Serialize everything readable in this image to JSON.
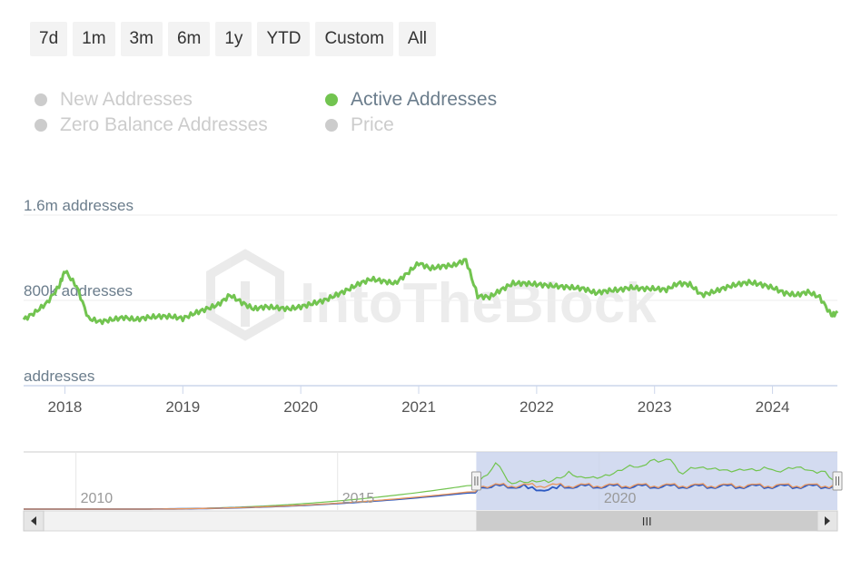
{
  "range_buttons": [
    "7d",
    "1m",
    "3m",
    "6m",
    "1y",
    "YTD",
    "Custom",
    "All"
  ],
  "legend": [
    {
      "label": "New Addresses",
      "active": false
    },
    {
      "label": "Active Addresses",
      "active": true
    },
    {
      "label": "Zero Balance Addresses",
      "active": false
    },
    {
      "label": "Price",
      "active": false
    }
  ],
  "watermark": "IntoTheBlock",
  "colors": {
    "active_series": "#72c450",
    "inactive_legend": "#cccccc",
    "navigator_mask": "#c8d2ec",
    "navigator_price": "#2c59c2",
    "navigator_zero": "#e8955c"
  },
  "chart_data": {
    "type": "line",
    "ylabel": "addresses",
    "y_ticks": [
      {
        "value": 1600000,
        "label": "1.6m addresses"
      },
      {
        "value": 800000,
        "label": "800k addresses"
      },
      {
        "value": 0,
        "label": "addresses"
      }
    ],
    "ylim": [
      0,
      1600000
    ],
    "xlim": [
      2017.65,
      2024.55
    ],
    "x_ticks": [
      "2018",
      "2019",
      "2020",
      "2021",
      "2022",
      "2023",
      "2024"
    ],
    "series": [
      {
        "name": "Active Addresses",
        "x": [
          2017.65,
          2017.75,
          2017.85,
          2017.95,
          2018.0,
          2018.1,
          2018.2,
          2018.3,
          2018.4,
          2018.5,
          2018.6,
          2018.7,
          2018.8,
          2018.9,
          2019.0,
          2019.1,
          2019.2,
          2019.3,
          2019.4,
          2019.5,
          2019.6,
          2019.7,
          2019.8,
          2019.9,
          2020.0,
          2020.1,
          2020.2,
          2020.3,
          2020.4,
          2020.5,
          2020.6,
          2020.7,
          2020.8,
          2020.9,
          2021.0,
          2021.1,
          2021.2,
          2021.3,
          2021.4,
          2021.5,
          2021.6,
          2021.7,
          2021.8,
          2021.9,
          2022.0,
          2022.1,
          2022.2,
          2022.3,
          2022.4,
          2022.5,
          2022.6,
          2022.7,
          2022.8,
          2022.9,
          2023.0,
          2023.1,
          2023.2,
          2023.3,
          2023.4,
          2023.5,
          2023.6,
          2023.7,
          2023.8,
          2023.9,
          2024.0,
          2024.1,
          2024.2,
          2024.3,
          2024.4,
          2024.5,
          2024.55
        ],
        "values": [
          620000,
          690000,
          780000,
          930000,
          1080000,
          930000,
          630000,
          600000,
          620000,
          640000,
          620000,
          640000,
          650000,
          650000,
          630000,
          680000,
          720000,
          760000,
          850000,
          780000,
          720000,
          740000,
          730000,
          720000,
          740000,
          770000,
          800000,
          850000,
          900000,
          960000,
          1000000,
          980000,
          960000,
          1050000,
          1150000,
          1100000,
          1120000,
          1130000,
          1180000,
          840000,
          830000,
          900000,
          960000,
          960000,
          950000,
          940000,
          930000,
          920000,
          910000,
          870000,
          890000,
          900000,
          920000,
          910000,
          910000,
          900000,
          960000,
          950000,
          850000,
          880000,
          920000,
          950000,
          970000,
          950000,
          920000,
          870000,
          850000,
          880000,
          830000,
          660000,
          680000
        ]
      }
    ],
    "grid": true,
    "legend_position": "top-left",
    "navigator": {
      "x_ticks": [
        "2010",
        "2015",
        "2020"
      ],
      "xlim": [
        2009.0,
        2024.55
      ],
      "selected_range": [
        2017.65,
        2024.55
      ],
      "scroll_label": "III"
    }
  }
}
